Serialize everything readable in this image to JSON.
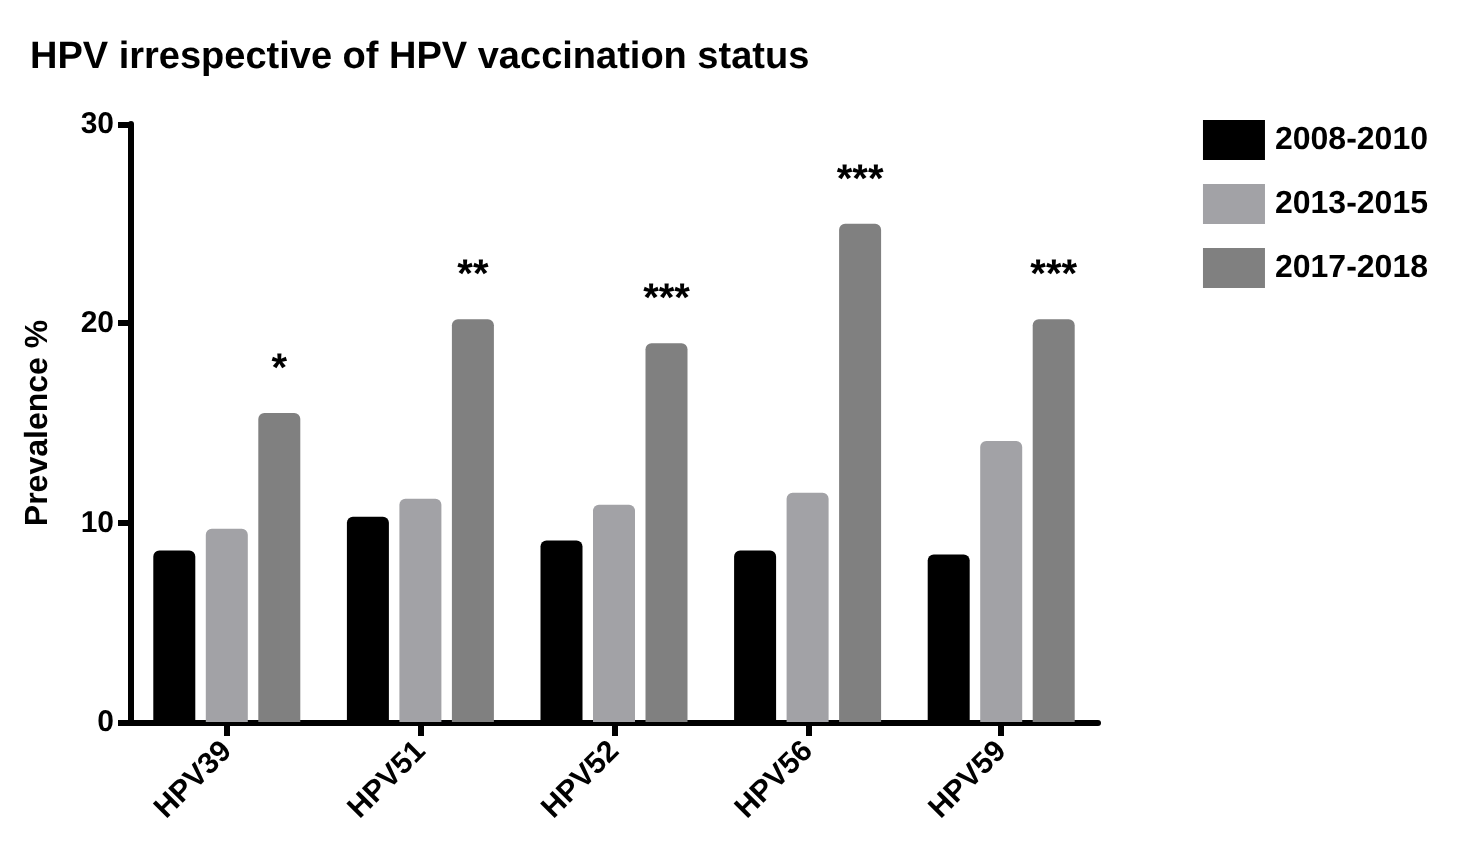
{
  "chart_data": {
    "type": "bar",
    "title": "HPV irrespective of HPV vaccination status",
    "ylabel": "Prevalence %",
    "categories": [
      "HPV39",
      "HPV51",
      "HPV52",
      "HPV56",
      "HPV59"
    ],
    "series": [
      {
        "name": "2008-2010",
        "color": "#000000",
        "values": [
          8.6,
          10.3,
          9.1,
          8.6,
          8.4
        ]
      },
      {
        "name": "2013-2015",
        "color": "#a2a2a6",
        "values": [
          9.7,
          11.2,
          10.9,
          11.5,
          14.1
        ]
      },
      {
        "name": "2017-2018",
        "color": "#808080",
        "values": [
          15.5,
          20.2,
          19.0,
          25.0,
          20.2
        ]
      }
    ],
    "ylim": [
      0,
      30
    ],
    "yticks": [
      0,
      10,
      20,
      30
    ],
    "grid": false,
    "legend": "top right",
    "annotations": [
      "*",
      "**",
      "***",
      "***",
      "***"
    ]
  }
}
